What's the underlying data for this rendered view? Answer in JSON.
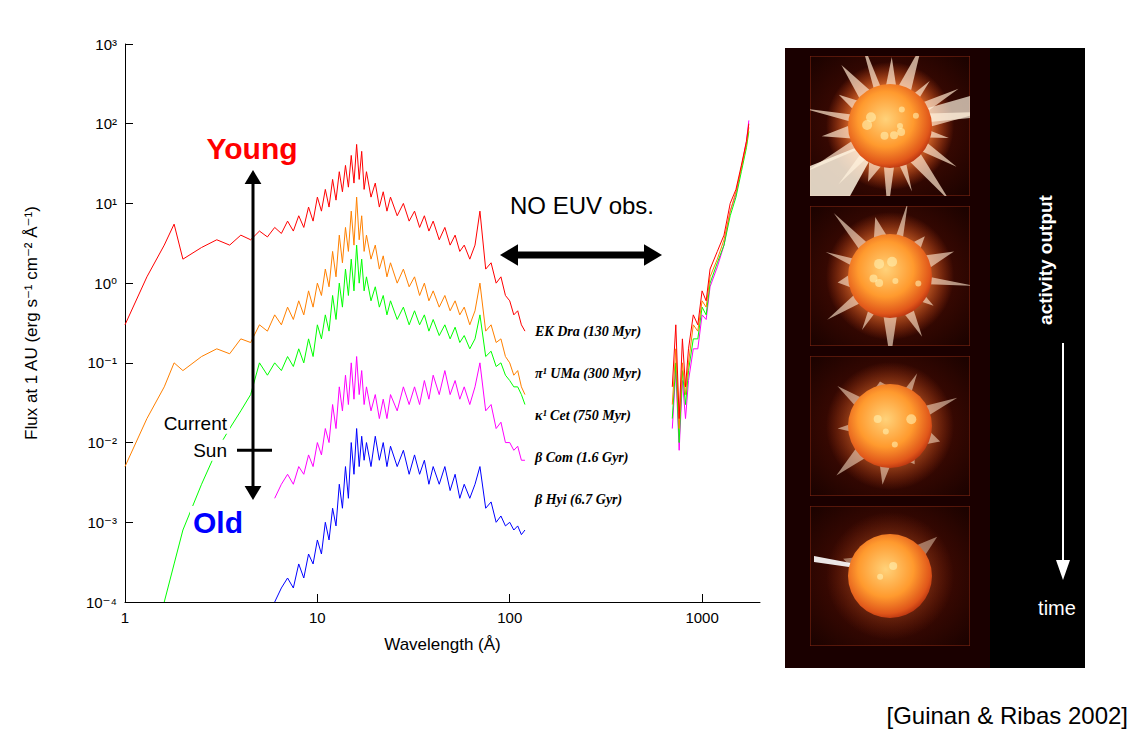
{
  "chart_data": {
    "type": "line",
    "log": true,
    "grid": false,
    "xlabel": "Wavelength (Å)",
    "ylabel": "Flux at 1 AU (erg s⁻¹ cm⁻² Å⁻¹)",
    "xlim": [
      1,
      2000
    ],
    "xticks": [
      1,
      10,
      100,
      1000
    ],
    "ylim": [
      0.0001,
      1000
    ],
    "yticks": [
      {
        "value": 0.0001,
        "label": "10⁻⁴"
      },
      {
        "value": 0.001,
        "label": "10⁻³"
      },
      {
        "value": 0.01,
        "label": "10⁻²"
      },
      {
        "value": 0.1,
        "label": "10⁻¹"
      },
      {
        "value": 1,
        "label": "10⁰"
      },
      {
        "value": 10,
        "label": "10¹"
      },
      {
        "value": 100,
        "label": "10²"
      },
      {
        "value": 1000,
        "label": "10³"
      }
    ],
    "series": [
      {
        "name": "EK Dra (130 Myr)",
        "color": "#ff0000",
        "segments": [
          {
            "x": [
              1,
              1.3,
              1.6,
              1.8,
              2,
              2.5,
              3,
              3.5,
              4,
              4.5,
              5,
              5.5,
              6,
              6.5,
              7,
              7.5,
              8,
              8.5,
              9,
              9.5,
              10,
              10.5,
              11,
              11.5,
              12,
              12.5,
              13,
              13.5,
              14,
              14.5,
              15,
              15.5,
              16,
              16.5,
              17,
              17.5,
              18,
              19,
              20,
              21,
              22,
              23,
              24,
              26,
              28,
              30,
              32,
              34,
              36,
              38,
              40,
              43,
              46,
              49,
              52,
              55,
              58,
              62,
              66,
              70,
              75,
              80,
              85,
              90,
              95,
              100,
              105,
              110,
              115,
              120
            ],
            "values": [
              0.3,
              1.2,
              3,
              5.5,
              2,
              2.8,
              3.5,
              3,
              4,
              3.5,
              4.5,
              3.8,
              5,
              4.2,
              6,
              4.5,
              7,
              5,
              9,
              6,
              12,
              8,
              15,
              9,
              20,
              11,
              25,
              14,
              30,
              16,
              40,
              18,
              55,
              20,
              45,
              15,
              25,
              12,
              18,
              9,
              14,
              8,
              12,
              7,
              10,
              6,
              8,
              5,
              7,
              4.5,
              6,
              3.5,
              5,
              3,
              4,
              2.5,
              3,
              2,
              3,
              8,
              1.5,
              1.8,
              1,
              1.2,
              0.7,
              0.6,
              0.4,
              0.45,
              0.3,
              0.25
            ]
          },
          {
            "x": [
              700,
              730,
              760,
              790,
              820,
              850,
              900,
              950,
              1000,
              1050,
              1100,
              1200,
              1300,
              1400,
              1500,
              1600,
              1700,
              1750
            ],
            "values": [
              0.05,
              0.3,
              0.02,
              0.2,
              0.05,
              0.15,
              0.4,
              0.3,
              0.8,
              0.6,
              1.5,
              2.5,
              4,
              10,
              15,
              30,
              60,
              100
            ]
          }
        ]
      },
      {
        "name": "π¹ UMa (300 Myr)",
        "color": "#ff8000",
        "segments": [
          {
            "x": [
              1,
              1.3,
              1.6,
              1.8,
              2,
              2.5,
              3,
              3.5,
              4,
              4.5,
              5,
              5.5,
              6,
              6.5,
              7,
              7.5,
              8,
              8.5,
              9,
              9.5,
              10,
              10.5,
              11,
              11.5,
              12,
              12.5,
              13,
              13.5,
              14,
              14.5,
              15,
              15.5,
              16,
              16.5,
              17,
              17.5,
              18,
              19,
              20,
              21,
              22,
              23,
              24,
              26,
              28,
              30,
              32,
              34,
              36,
              38,
              40,
              43,
              46,
              49,
              52,
              55,
              58,
              62,
              66,
              70,
              75,
              80,
              85,
              90,
              95,
              100,
              105,
              110,
              115,
              120
            ],
            "values": [
              0.005,
              0.02,
              0.05,
              0.1,
              0.08,
              0.12,
              0.15,
              0.13,
              0.2,
              0.18,
              0.3,
              0.25,
              0.4,
              0.3,
              0.5,
              0.35,
              0.6,
              0.4,
              0.8,
              0.5,
              1,
              0.7,
              1.5,
              0.9,
              2.5,
              1.2,
              4,
              1.8,
              5,
              2.5,
              8,
              3,
              12,
              3.5,
              7,
              2.5,
              4,
              2,
              3,
              1.5,
              2.2,
              1.2,
              1.8,
              1,
              1.5,
              0.9,
              1.2,
              0.7,
              1,
              0.6,
              0.8,
              0.5,
              0.7,
              0.45,
              0.6,
              0.4,
              0.5,
              0.3,
              0.45,
              1,
              0.25,
              0.3,
              0.18,
              0.2,
              0.12,
              0.1,
              0.07,
              0.08,
              0.05,
              0.04
            ]
          },
          {
            "x": [
              700,
              730,
              760,
              790,
              820,
              850,
              900,
              950,
              1000,
              1050,
              1100,
              1200,
              1300,
              1400,
              1500,
              1600,
              1700,
              1750
            ],
            "values": [
              0.03,
              0.15,
              0.015,
              0.1,
              0.04,
              0.1,
              0.3,
              0.25,
              0.6,
              0.5,
              1.2,
              2,
              3.5,
              8,
              14,
              28,
              55,
              90
            ]
          }
        ]
      },
      {
        "name": "κ¹ Cet (750 Myr)",
        "color": "#00ff00",
        "segments": [
          {
            "x": [
              1.6,
              1.8,
              2,
              2.5,
              3,
              3.5,
              4,
              4.5,
              5,
              5.5,
              6,
              6.5,
              7,
              7.5,
              8,
              8.5,
              9,
              9.5,
              10,
              10.5,
              11,
              11.5,
              12,
              12.5,
              13,
              13.5,
              14,
              14.5,
              15,
              15.5,
              16,
              16.5,
              17,
              17.5,
              18,
              19,
              20,
              21,
              22,
              23,
              24,
              26,
              28,
              30,
              32,
              34,
              36,
              38,
              40,
              43,
              46,
              49,
              52,
              55,
              58,
              62,
              66,
              70,
              75,
              80,
              85,
              90,
              95,
              100,
              105,
              110,
              115,
              120
            ],
            "values": [
              0.0001,
              0.0003,
              0.0008,
              0.003,
              0.008,
              0.015,
              0.025,
              0.04,
              0.1,
              0.07,
              0.1,
              0.08,
              0.12,
              0.09,
              0.15,
              0.1,
              0.2,
              0.12,
              0.3,
              0.2,
              0.4,
              0.25,
              0.7,
              0.35,
              1,
              0.5,
              1.5,
              0.7,
              2,
              0.8,
              3,
              1,
              2,
              0.8,
              1.2,
              0.6,
              0.9,
              0.5,
              0.7,
              0.4,
              0.6,
              0.35,
              0.5,
              0.3,
              0.45,
              0.3,
              0.4,
              0.25,
              0.35,
              0.22,
              0.3,
              0.2,
              0.28,
              0.18,
              0.22,
              0.15,
              0.2,
              0.4,
              0.12,
              0.14,
              0.09,
              0.1,
              0.07,
              0.06,
              0.05,
              0.05,
              0.04,
              0.03
            ]
          },
          {
            "x": [
              700,
              730,
              760,
              790,
              820,
              850,
              900,
              950,
              1000,
              1050,
              1100,
              1200,
              1300,
              1400,
              1500,
              1600,
              1700,
              1750
            ],
            "values": [
              0.02,
              0.1,
              0.01,
              0.08,
              0.03,
              0.08,
              0.2,
              0.2,
              0.5,
              0.4,
              1,
              1.8,
              3,
              7,
              12,
              25,
              50,
              80
            ]
          }
        ]
      },
      {
        "name": "β Com (1.6 Gyr)",
        "color": "#ff00ff",
        "segments": [
          {
            "x": [
              6,
              6.5,
              7,
              7.5,
              8,
              8.5,
              9,
              9.5,
              10,
              10.5,
              11,
              11.5,
              12,
              12.5,
              13,
              13.5,
              14,
              14.5,
              15,
              15.5,
              16,
              16.5,
              17,
              17.5,
              18,
              19,
              20,
              21,
              22,
              23,
              24,
              26,
              28,
              30,
              32,
              34,
              36,
              38,
              40,
              43,
              46,
              49,
              52,
              55,
              58,
              62,
              66,
              70,
              75,
              80,
              85,
              90,
              95,
              100,
              105,
              110,
              115,
              120
            ],
            "values": [
              0.002,
              0.003,
              0.004,
              0.003,
              0.005,
              0.004,
              0.007,
              0.005,
              0.01,
              0.007,
              0.015,
              0.01,
              0.03,
              0.015,
              0.05,
              0.025,
              0.07,
              0.03,
              0.1,
              0.035,
              0.12,
              0.04,
              0.08,
              0.03,
              0.05,
              0.025,
              0.04,
              0.02,
              0.035,
              0.02,
              0.04,
              0.025,
              0.05,
              0.03,
              0.05,
              0.03,
              0.06,
              0.035,
              0.07,
              0.04,
              0.08,
              0.04,
              0.06,
              0.035,
              0.05,
              0.03,
              0.05,
              0.1,
              0.025,
              0.03,
              0.015,
              0.018,
              0.01,
              0.01,
              0.008,
              0.009,
              0.006,
              0.006
            ]
          },
          {
            "x": [
              700,
              730,
              760,
              790,
              820,
              850,
              900,
              950,
              1000,
              1050,
              1100,
              1200,
              1300,
              1400,
              1500,
              1600,
              1700,
              1750
            ],
            "values": [
              0.015,
              0.08,
              0.008,
              0.06,
              0.02,
              0.06,
              0.15,
              0.15,
              0.4,
              0.35,
              0.9,
              1.6,
              3,
              8,
              13,
              28,
              60,
              110
            ]
          }
        ]
      },
      {
        "name": "β Hyi (6.7 Gyr)",
        "color": "#0000ff",
        "segments": [
          {
            "x": [
              6,
              6.5,
              7,
              7.5,
              8,
              8.5,
              9,
              9.5,
              10,
              10.5,
              11,
              11.5,
              12,
              12.5,
              13,
              13.5,
              14,
              14.5,
              15,
              15.5,
              16,
              16.5,
              17,
              17.5,
              18,
              19,
              20,
              21,
              22,
              23,
              24,
              26,
              28,
              30,
              32,
              34,
              36,
              38,
              40,
              43,
              46,
              49,
              52,
              55,
              58,
              62,
              66,
              70,
              75,
              80,
              85,
              90,
              95,
              100,
              105,
              110,
              115,
              120
            ],
            "values": [
              0.0001,
              0.00015,
              0.0002,
              0.00015,
              0.0003,
              0.0002,
              0.0004,
              0.0003,
              0.0006,
              0.0004,
              0.001,
              0.0006,
              0.0015,
              0.0009,
              0.003,
              0.0015,
              0.005,
              0.002,
              0.01,
              0.004,
              0.015,
              0.005,
              0.012,
              0.006,
              0.01,
              0.005,
              0.012,
              0.006,
              0.01,
              0.005,
              0.009,
              0.005,
              0.008,
              0.004,
              0.007,
              0.004,
              0.006,
              0.003,
              0.005,
              0.003,
              0.005,
              0.0025,
              0.004,
              0.002,
              0.003,
              0.002,
              0.003,
              0.005,
              0.0015,
              0.0018,
              0.001,
              0.0012,
              0.0009,
              0.001,
              0.0008,
              0.0009,
              0.0007,
              0.0008
            ]
          }
        ]
      }
    ],
    "annotations": {
      "young": {
        "text": "Young",
        "color": "#ff0000"
      },
      "old": {
        "text": "Old",
        "color": "#0000ff"
      },
      "current_sun": {
        "text": "Current Sun",
        "y": 0.008
      },
      "no_euv": {
        "text": "NO EUV obs."
      }
    }
  },
  "side_panel": {
    "label": "activity output",
    "arrow_label": "time"
  },
  "citation": "[Guinan & Ribas 2002]"
}
